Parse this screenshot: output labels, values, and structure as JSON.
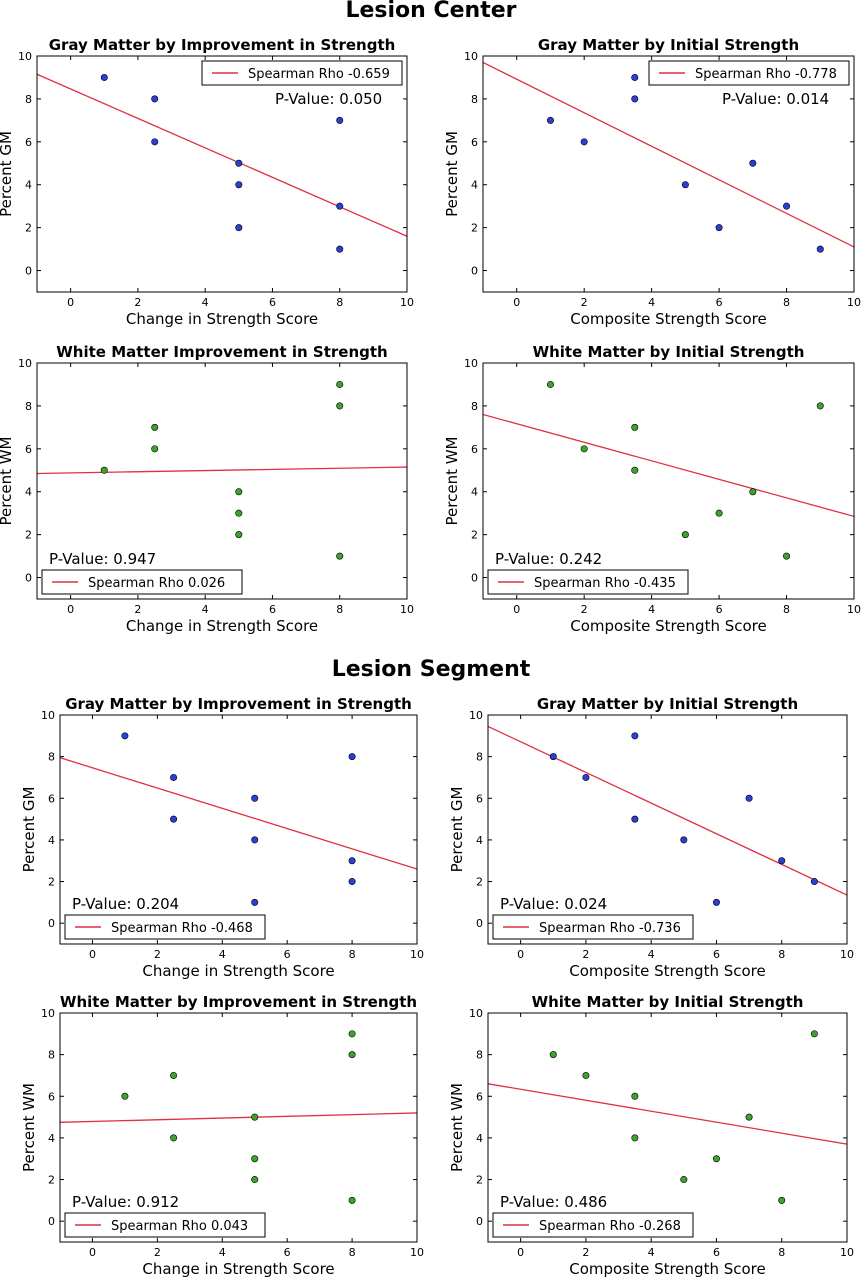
{
  "sections": [
    {
      "title": "Lesion Center"
    },
    {
      "title": "Lesion Segment"
    }
  ],
  "colors": {
    "blue_points": "#2a3fd8",
    "green_points": "#3aa52a",
    "fit_line": "#e0303f"
  },
  "chart_data": [
    {
      "type": "scatter",
      "title": "Gray Matter by Improvement in Strength",
      "xlabel": "Change in Strength Score",
      "ylabel": "Percent GM",
      "xlim": [
        -1,
        10
      ],
      "ylim": [
        -1,
        10
      ],
      "xticks": [
        0,
        2,
        4,
        6,
        8,
        10
      ],
      "yticks": [
        0,
        2,
        4,
        6,
        8,
        10
      ],
      "point_color": "blue",
      "x": [
        1,
        2.5,
        2.5,
        5,
        5,
        5,
        8,
        8,
        8
      ],
      "y": [
        9,
        8,
        6,
        5,
        4,
        2,
        7,
        3,
        1
      ],
      "fit_line": [
        [
          -1,
          9.15
        ],
        [
          10,
          1.6
        ]
      ],
      "legend": {
        "label": "Spearman Rho -0.659",
        "position": "top-right"
      },
      "pvalue": "P-Value: 0.050"
    },
    {
      "type": "scatter",
      "title": "Gray Matter by Initial Strength",
      "xlabel": "Composite Strength Score",
      "ylabel": "Percent GM",
      "xlim": [
        -1,
        10
      ],
      "ylim": [
        -1,
        10
      ],
      "xticks": [
        0,
        2,
        4,
        6,
        8,
        10
      ],
      "yticks": [
        0,
        2,
        4,
        6,
        8,
        10
      ],
      "point_color": "blue",
      "x": [
        1,
        2,
        3.5,
        3.5,
        5,
        6,
        7,
        8,
        9
      ],
      "y": [
        7,
        6,
        9,
        8,
        4,
        2,
        5,
        3,
        1
      ],
      "fit_line": [
        [
          -1,
          9.7
        ],
        [
          10,
          1.1
        ]
      ],
      "legend": {
        "label": "Spearman Rho -0.778",
        "position": "top-right"
      },
      "pvalue": "P-Value: 0.014"
    },
    {
      "type": "scatter",
      "title": "White Matter Improvement in Strength",
      "xlabel": "Change in Strength Score",
      "ylabel": "Percent WM",
      "xlim": [
        -1,
        10
      ],
      "ylim": [
        -1,
        10
      ],
      "xticks": [
        0,
        2,
        4,
        6,
        8,
        10
      ],
      "yticks": [
        0,
        2,
        4,
        6,
        8,
        10
      ],
      "point_color": "green",
      "x": [
        1,
        2.5,
        2.5,
        5,
        5,
        5,
        8,
        8,
        8
      ],
      "y": [
        5,
        7,
        6,
        4,
        3,
        2,
        9,
        8,
        1
      ],
      "fit_line": [
        [
          -1,
          4.85
        ],
        [
          10,
          5.15
        ]
      ],
      "legend": {
        "label": "Spearman Rho 0.026",
        "position": "bottom-left"
      },
      "pvalue": "P-Value: 0.947"
    },
    {
      "type": "scatter",
      "title": "White Matter by Initial Strength",
      "xlabel": "Composite Strength Score",
      "ylabel": "Percent WM",
      "xlim": [
        -1,
        10
      ],
      "ylim": [
        -1,
        10
      ],
      "xticks": [
        0,
        2,
        4,
        6,
        8,
        10
      ],
      "yticks": [
        0,
        2,
        4,
        6,
        8,
        10
      ],
      "point_color": "green",
      "x": [
        1,
        2,
        3.5,
        3.5,
        5,
        6,
        7,
        8,
        9
      ],
      "y": [
        9,
        6,
        7,
        5,
        2,
        3,
        4,
        1,
        8
      ],
      "fit_line": [
        [
          -1,
          7.6
        ],
        [
          10,
          2.85
        ]
      ],
      "legend": {
        "label": "Spearman Rho -0.435",
        "position": "bottom-left"
      },
      "pvalue": "P-Value: 0.242"
    },
    {
      "type": "scatter",
      "title": "Gray Matter by Improvement in Strength",
      "xlabel": "Change in Strength Score",
      "ylabel": "Percent GM",
      "xlim": [
        -1,
        10
      ],
      "ylim": [
        -1,
        10
      ],
      "xticks": [
        0,
        2,
        4,
        6,
        8,
        10
      ],
      "yticks": [
        0,
        2,
        4,
        6,
        8,
        10
      ],
      "point_color": "blue",
      "x": [
        1,
        2.5,
        2.5,
        5,
        5,
        5,
        8,
        8,
        8
      ],
      "y": [
        9,
        7,
        5,
        6,
        4,
        1,
        8,
        3,
        2
      ],
      "fit_line": [
        [
          -1,
          7.95
        ],
        [
          10,
          2.6
        ]
      ],
      "legend": {
        "label": "Spearman Rho -0.468",
        "position": "bottom-left"
      },
      "pvalue": "P-Value: 0.204"
    },
    {
      "type": "scatter",
      "title": "Gray Matter by Initial Strength",
      "xlabel": "Composite Strength Score",
      "ylabel": "Percent GM",
      "xlim": [
        -1,
        10
      ],
      "ylim": [
        -1,
        10
      ],
      "xticks": [
        0,
        2,
        4,
        6,
        8,
        10
      ],
      "yticks": [
        0,
        2,
        4,
        6,
        8,
        10
      ],
      "point_color": "blue",
      "x": [
        1,
        2,
        3.5,
        3.5,
        5,
        6,
        7,
        8,
        9
      ],
      "y": [
        8,
        7,
        9,
        5,
        4,
        1,
        6,
        3,
        2
      ],
      "fit_line": [
        [
          -1,
          9.45
        ],
        [
          10,
          1.35
        ]
      ],
      "legend": {
        "label": "Spearman Rho -0.736",
        "position": "bottom-left"
      },
      "pvalue": "P-Value: 0.024"
    },
    {
      "type": "scatter",
      "title": "White Matter by Improvement in Strength",
      "xlabel": "Change in Strength Score",
      "ylabel": "Percent WM",
      "xlim": [
        -1,
        10
      ],
      "ylim": [
        -1,
        10
      ],
      "xticks": [
        0,
        2,
        4,
        6,
        8,
        10
      ],
      "yticks": [
        0,
        2,
        4,
        6,
        8,
        10
      ],
      "point_color": "green",
      "x": [
        1,
        2.5,
        2.5,
        5,
        5,
        5,
        8,
        8,
        8
      ],
      "y": [
        6,
        7,
        4,
        5,
        3,
        2,
        9,
        8,
        1
      ],
      "fit_line": [
        [
          -1,
          4.75
        ],
        [
          10,
          5.2
        ]
      ],
      "legend": {
        "label": "Spearman Rho 0.043",
        "position": "bottom-left"
      },
      "pvalue": "P-Value: 0.912"
    },
    {
      "type": "scatter",
      "title": "White Matter by Initial Strength",
      "xlabel": "Composite Strength Score",
      "ylabel": "Percent WM",
      "xlim": [
        -1,
        10
      ],
      "ylim": [
        -1,
        10
      ],
      "xticks": [
        0,
        2,
        4,
        6,
        8,
        10
      ],
      "yticks": [
        0,
        2,
        4,
        6,
        8,
        10
      ],
      "point_color": "green",
      "x": [
        1,
        2,
        3.5,
        3.5,
        5,
        6,
        7,
        8,
        9
      ],
      "y": [
        8,
        7,
        6,
        4,
        2,
        3,
        5,
        1,
        9
      ],
      "fit_line": [
        [
          -1,
          6.6
        ],
        [
          10,
          3.7
        ]
      ],
      "legend": {
        "label": "Spearman Rho -0.268",
        "position": "bottom-left"
      },
      "pvalue": "P-Value: 0.486"
    }
  ]
}
